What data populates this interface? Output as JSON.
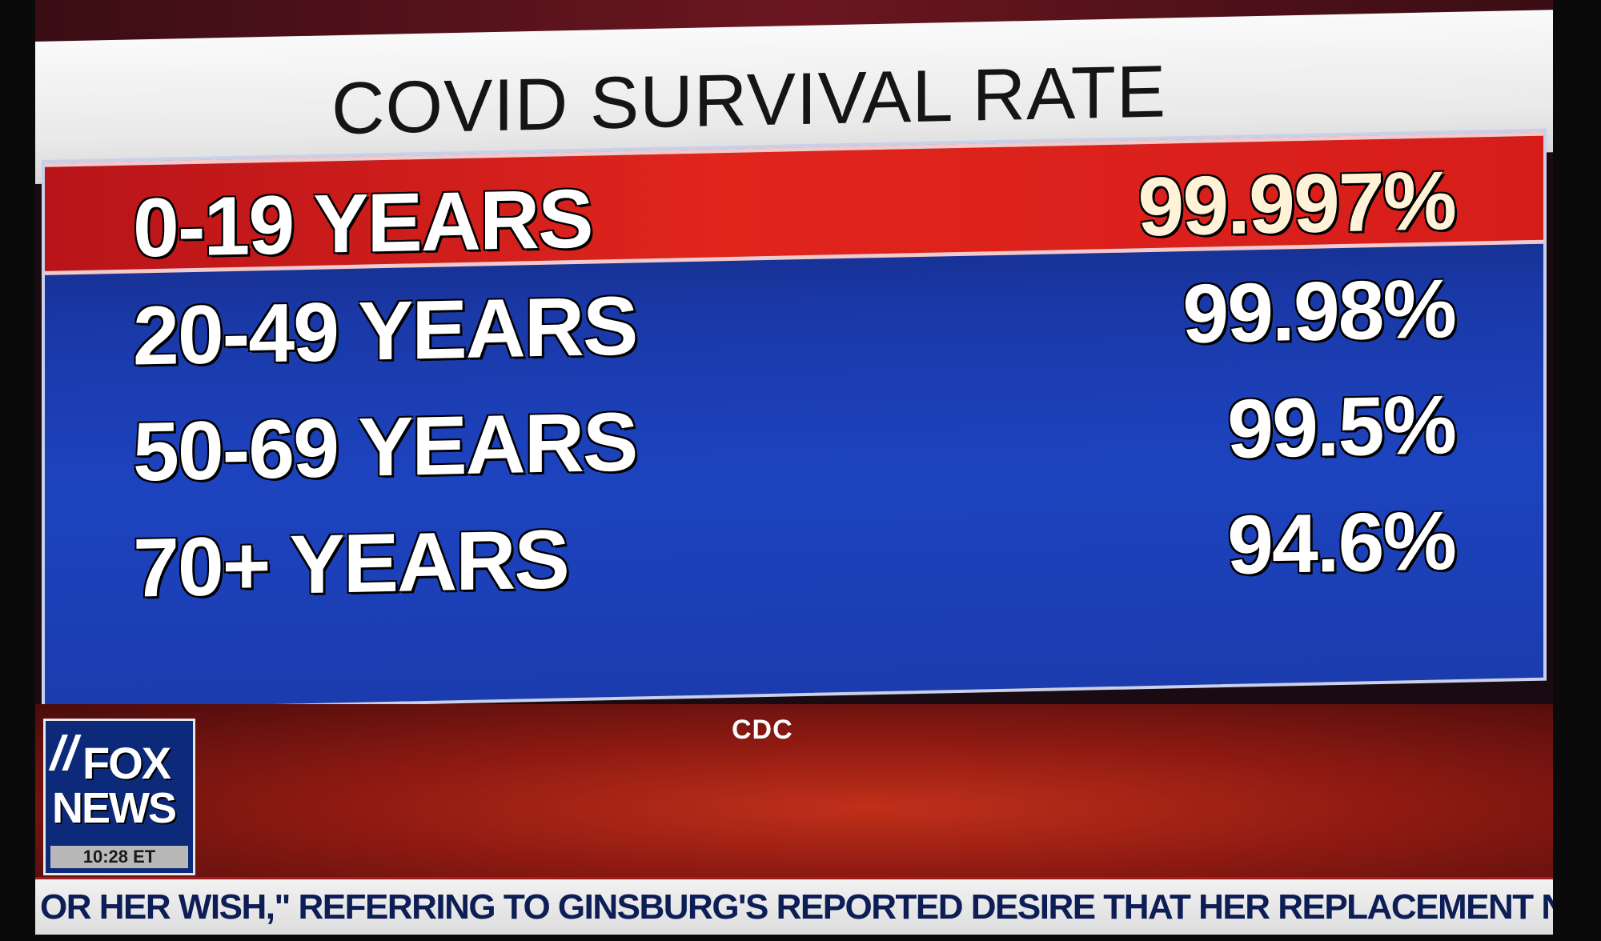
{
  "title": "COVID SURVIVAL RATE",
  "rows": [
    {
      "label": "0-19 YEARS",
      "value": "99.997%"
    },
    {
      "label": "20-49 YEARS",
      "value": "99.98%"
    },
    {
      "label": "50-69 YEARS",
      "value": "99.5%"
    },
    {
      "label": "70+ YEARS",
      "value": "94.6%"
    }
  ],
  "source": "CDC",
  "logo": {
    "line1": "FOX",
    "line2": "NEWS",
    "time": "10:28 ET"
  },
  "ticker": "OR HER WISH,\" REFERRING TO GINSBURG'S REPORTED DESIRE THAT HER REPLACEMENT NOT BE NAMED UN",
  "colors": {
    "panel_blue": "#1d43bf",
    "highlight_red": "#e0251d",
    "title_bg": "#f2f2f2"
  }
}
